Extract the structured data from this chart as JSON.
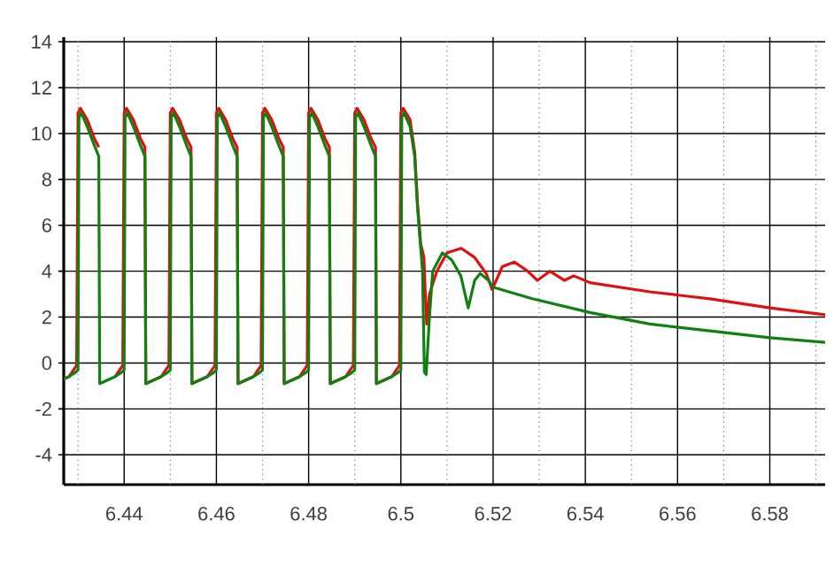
{
  "chart_data": {
    "type": "line",
    "xlim": [
      6.4269,
      6.592
    ],
    "ylim": [
      -5.3,
      14.2
    ],
    "xticks": [
      {
        "value": 6.43,
        "label": null
      },
      6.44,
      {
        "value": 6.45,
        "label": null
      },
      6.46,
      {
        "value": 6.47,
        "label": null
      },
      6.48,
      {
        "value": 6.49,
        "label": null
      },
      {
        "value": 6.5,
        "label": "6.5"
      },
      {
        "value": 6.51,
        "label": null
      },
      6.52,
      {
        "value": 6.53,
        "label": null
      },
      6.54,
      {
        "value": 6.55,
        "label": null
      },
      6.56,
      {
        "value": 6.57,
        "label": null
      },
      6.58,
      {
        "value": 6.59,
        "label": null
      }
    ],
    "yticks": [
      -4,
      -2,
      0,
      2,
      4,
      6,
      8,
      10,
      12,
      14
    ],
    "grid": true,
    "marker": "none",
    "line_style": "solid",
    "series": [
      {
        "color": "#e01010",
        "x": [
          6.4269,
          6.428,
          6.4297,
          6.43,
          6.4305,
          6.432,
          6.4335,
          6.4345,
          6.4347,
          6.438,
          6.4397,
          6.44,
          6.4405,
          6.442,
          6.4435,
          6.4445,
          6.4447,
          6.448,
          6.4497,
          6.45,
          6.4505,
          6.452,
          6.4535,
          6.4545,
          6.4547,
          6.458,
          6.4597,
          6.46,
          6.4605,
          6.462,
          6.4635,
          6.4645,
          6.4647,
          6.468,
          6.4697,
          6.47,
          6.4705,
          6.472,
          6.4735,
          6.4745,
          6.4747,
          6.478,
          6.4797,
          6.48,
          6.4805,
          6.482,
          6.4835,
          6.4845,
          6.4847,
          6.488,
          6.4897,
          6.49,
          6.4905,
          6.492,
          6.4935,
          6.4945,
          6.4947,
          6.498,
          6.4997,
          6.5,
          6.5005,
          6.502,
          6.503,
          6.5036,
          6.5043,
          6.505,
          6.5053,
          6.5056,
          6.5062,
          6.5078,
          6.51,
          6.5131,
          6.516,
          6.5185,
          6.5198,
          6.522,
          6.5246,
          6.5275,
          6.5296,
          6.5323,
          6.5355,
          6.5375,
          6.541,
          6.554,
          6.567,
          6.58,
          6.592
        ],
        "values": [
          -0.7,
          -0.6,
          -0.1,
          10.9,
          11.1,
          10.6,
          9.8,
          9.4,
          null,
          -0.6,
          -0.1,
          10.9,
          11.1,
          10.6,
          9.8,
          9.4,
          -0.9,
          -0.6,
          -0.1,
          10.9,
          11.1,
          10.6,
          9.8,
          9.4,
          -0.9,
          -0.6,
          -0.1,
          10.9,
          11.1,
          10.6,
          9.8,
          9.4,
          -0.9,
          -0.6,
          -0.1,
          10.9,
          11.1,
          10.6,
          9.8,
          9.4,
          -0.9,
          -0.6,
          -0.1,
          10.9,
          11.1,
          10.6,
          9.8,
          9.4,
          -0.9,
          -0.6,
          -0.1,
          10.9,
          11.1,
          10.6,
          9.8,
          9.4,
          -0.9,
          -0.6,
          -0.1,
          10.9,
          11.1,
          10.6,
          9.2,
          7.0,
          5.2,
          4.6,
          3.0,
          1.7,
          3.0,
          4.0,
          4.8,
          5.0,
          4.6,
          3.9,
          3.2,
          4.2,
          4.4,
          4.0,
          3.6,
          4.0,
          3.6,
          3.8,
          3.5,
          3.1,
          2.8,
          2.4,
          2.1
        ]
      },
      {
        "color": "#108010",
        "x": [
          6.4269,
          6.428,
          6.4295,
          6.43,
          6.4302,
          6.4307,
          6.432,
          6.4335,
          6.4345,
          6.4347,
          6.438,
          6.4395,
          6.44,
          6.4402,
          6.4407,
          6.442,
          6.4435,
          6.4445,
          6.4447,
          6.448,
          6.4495,
          6.45,
          6.4502,
          6.4507,
          6.452,
          6.4535,
          6.4545,
          6.4547,
          6.458,
          6.4595,
          6.46,
          6.4602,
          6.4607,
          6.462,
          6.4635,
          6.4645,
          6.4647,
          6.468,
          6.4695,
          6.47,
          6.4702,
          6.4707,
          6.472,
          6.4735,
          6.4745,
          6.4747,
          6.478,
          6.4795,
          6.48,
          6.4802,
          6.4807,
          6.482,
          6.4835,
          6.4845,
          6.4847,
          6.488,
          6.4895,
          6.49,
          6.4902,
          6.4907,
          6.492,
          6.4935,
          6.4945,
          6.4947,
          6.498,
          6.4995,
          6.5,
          6.5002,
          6.5007,
          6.502,
          6.503,
          6.5036,
          6.5043,
          6.5047,
          6.5051,
          6.5055,
          6.5062,
          6.5069,
          6.509,
          6.511,
          6.513,
          6.5146,
          6.516,
          6.5172,
          6.519,
          6.52,
          6.5285,
          6.541,
          6.554,
          6.567,
          6.58,
          6.592
        ],
        "values": [
          -0.7,
          -0.6,
          -0.4,
          -0.3,
          10.7,
          10.9,
          10.3,
          9.5,
          9.0,
          -0.9,
          -0.6,
          -0.4,
          -0.3,
          10.7,
          10.9,
          10.3,
          9.5,
          9.0,
          -0.9,
          -0.6,
          -0.4,
          -0.3,
          10.7,
          10.9,
          10.3,
          9.5,
          9.0,
          -0.9,
          -0.6,
          -0.4,
          -0.3,
          10.7,
          10.9,
          10.3,
          9.5,
          9.0,
          -0.9,
          -0.6,
          -0.4,
          -0.3,
          10.7,
          10.9,
          10.3,
          9.5,
          9.0,
          -0.9,
          -0.6,
          -0.4,
          -0.3,
          10.7,
          10.9,
          10.3,
          9.5,
          9.0,
          -0.9,
          -0.6,
          -0.4,
          -0.3,
          10.7,
          10.9,
          10.3,
          9.5,
          9.0,
          -0.9,
          -0.6,
          -0.4,
          -0.3,
          10.7,
          10.9,
          10.3,
          9.0,
          6.8,
          5.0,
          4.0,
          -0.4,
          -0.5,
          2.0,
          4.0,
          4.8,
          4.5,
          3.8,
          2.4,
          3.6,
          3.9,
          3.6,
          3.3,
          2.8,
          2.2,
          1.7,
          1.4,
          1.1,
          0.9
        ]
      }
    ]
  }
}
